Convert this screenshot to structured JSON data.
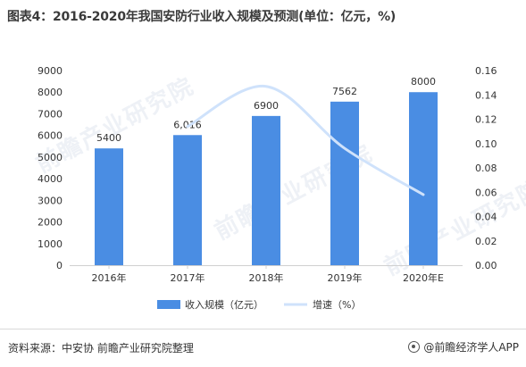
{
  "title": "图表4：2016-2020年我国安防行业收入规模及预测(单位：亿元，%)",
  "footer": {
    "source": "资料来源：中安协 前瞻产业研究院整理",
    "brand": "@前瞻经济学人APP"
  },
  "watermark": "前瞻产业研究院",
  "colors": {
    "bar": "#4a8de3",
    "line": "#cfe2fb",
    "axis": "#d0d0d0",
    "text": "#333333"
  },
  "chart_data": {
    "type": "bar",
    "categories": [
      "2016年",
      "2017年",
      "2018年",
      "2019年",
      "2020年E"
    ],
    "series": [
      {
        "name": "收入规模（亿元）",
        "type": "bar",
        "axis": "left",
        "values": [
          5400,
          6016,
          6900,
          7562,
          8000
        ],
        "labels": [
          "5400",
          "6,016",
          "6900",
          "7562",
          "8000"
        ]
      },
      {
        "name": "增速（%）",
        "type": "line",
        "axis": "right",
        "values": [
          null,
          0.114,
          0.147,
          0.096,
          0.058
        ]
      }
    ],
    "y_left": {
      "range": [
        0,
        9000
      ],
      "ticks": [
        "0",
        "1000",
        "2000",
        "3000",
        "4000",
        "5000",
        "6000",
        "7000",
        "8000",
        "9000"
      ]
    },
    "y_right": {
      "range": [
        0,
        0.16
      ],
      "ticks": [
        "0.00",
        "0.02",
        "0.04",
        "0.06",
        "0.08",
        "0.10",
        "0.12",
        "0.14",
        "0.16"
      ]
    },
    "grid": false,
    "legend": "bottom"
  }
}
